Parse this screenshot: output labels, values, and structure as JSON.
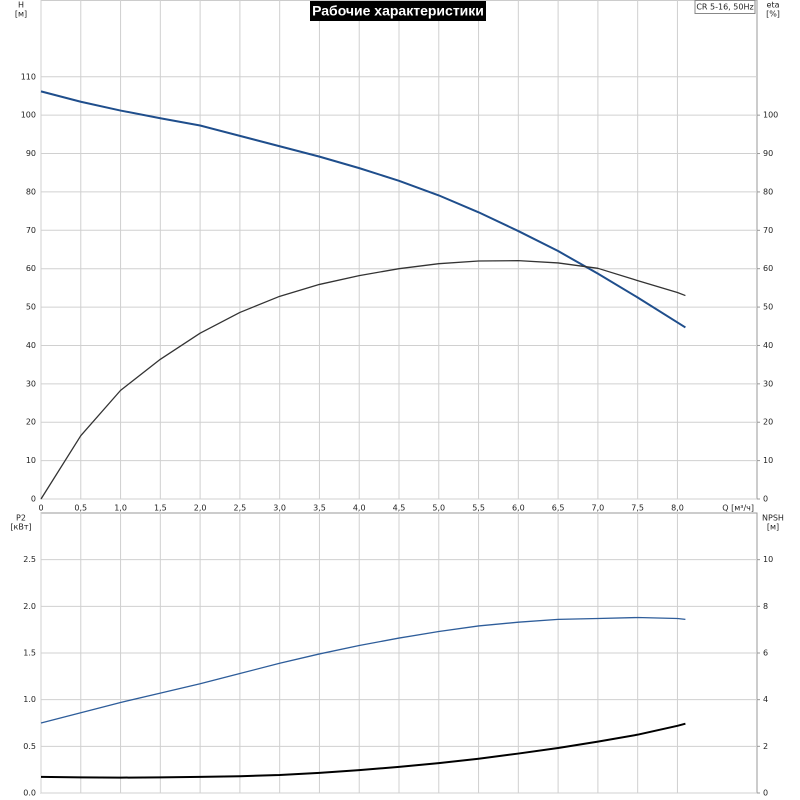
{
  "chart_data": [
    {
      "type": "line",
      "title": "Рабочие характеристики",
      "product": "CR 5-16, 50Hz",
      "ylabel": "H",
      "yunit": "[м]",
      "y2label": "eta",
      "y2unit": "[%]",
      "xlabel": "Q [м³/ч]",
      "x": [
        0,
        0.5,
        1.0,
        1.5,
        2.0,
        2.5,
        3.0,
        3.5,
        4.0,
        4.5,
        5.0,
        5.5,
        6.0,
        6.5,
        7.0,
        7.5,
        8.0,
        8.1
      ],
      "xlim": [
        0,
        9
      ],
      "xticks": [
        0,
        {
          "value": 0.5,
          "label": "0,5"
        },
        {
          "value": 1.0,
          "label": "1,0"
        },
        {
          "value": 1.5,
          "label": "1,5"
        },
        {
          "value": 2.0,
          "label": "2,0"
        },
        {
          "value": 2.5,
          "label": "2,5"
        },
        {
          "value": 3.0,
          "label": "3,0"
        },
        {
          "value": 3.5,
          "label": "3,5"
        },
        {
          "value": 4.0,
          "label": "4,0"
        },
        {
          "value": 4.5,
          "label": "4,5"
        },
        {
          "value": 5.0,
          "label": "5,0"
        },
        {
          "value": 5.5,
          "label": "5,5"
        },
        {
          "value": 6.0,
          "label": "6,0"
        },
        {
          "value": 6.5,
          "label": "6,5"
        },
        {
          "value": 7.0,
          "label": "7,0"
        },
        {
          "value": 7.5,
          "label": "7,5"
        },
        {
          "value": 8.0,
          "label": "8,0"
        }
      ],
      "ylim": [
        0,
        130
      ],
      "yticks": [
        0,
        10,
        20,
        30,
        40,
        50,
        60,
        70,
        80,
        90,
        100,
        110
      ],
      "y2lim": [
        0,
        130
      ],
      "y2ticks": [
        0,
        10,
        20,
        30,
        40,
        50,
        60,
        70,
        80,
        90,
        100
      ],
      "grid": true,
      "series": [
        {
          "color": "#1f4e8c",
          "width": 2,
          "values": [
            106.2,
            103.5,
            101.2,
            99.2,
            97.3,
            94.6,
            91.9,
            89.2,
            86.2,
            82.9,
            79.1,
            74.7,
            69.8,
            64.6,
            58.7,
            52.5,
            46.0,
            44.7
          ]
        },
        {
          "color": "#333333",
          "width": 1.3,
          "axis": "y2",
          "values": [
            0,
            16.5,
            28.3,
            36.4,
            43.2,
            48.6,
            52.8,
            55.9,
            58.2,
            60.0,
            61.3,
            62.0,
            62.1,
            61.5,
            60.1,
            56.9,
            53.8,
            53.0
          ]
        }
      ]
    },
    {
      "type": "line",
      "ylabel": "P2",
      "yunit": "[кВт]",
      "y2label": "NPSH",
      "y2unit": "[м]",
      "x": [
        0,
        0.5,
        1.0,
        1.5,
        2.0,
        2.5,
        3.0,
        3.5,
        4.0,
        4.5,
        5.0,
        5.5,
        6.0,
        6.5,
        7.0,
        7.5,
        8.0,
        8.1
      ],
      "xlim": [
        0,
        9
      ],
      "xgrid": [
        0,
        0.5,
        1.0,
        1.5,
        2.0,
        2.5,
        3.0,
        3.5,
        4.0,
        4.5,
        5.0,
        5.5,
        6.0,
        6.5,
        7.0,
        7.5,
        8.0
      ],
      "ylim": [
        0,
        3
      ],
      "yticks": [
        {
          "value": 0,
          "label": "0.0"
        },
        0.5,
        {
          "value": 1,
          "label": "1.0"
        },
        1.5,
        {
          "value": 2,
          "label": "2.0"
        },
        2.5
      ],
      "y2lim": [
        0,
        12
      ],
      "y2ticks": [
        0,
        2,
        4,
        6,
        8,
        10
      ],
      "grid": true,
      "series": [
        {
          "color": "#2e5d9a",
          "width": 1.3,
          "values": [
            0.75,
            0.86,
            0.97,
            1.07,
            1.17,
            1.28,
            1.39,
            1.49,
            1.58,
            1.66,
            1.73,
            1.79,
            1.83,
            1.86,
            1.87,
            1.88,
            1.87,
            1.86
          ]
        },
        {
          "color": "#000000",
          "width": 2,
          "axis": "y2",
          "values": [
            0.69,
            0.67,
            0.66,
            0.67,
            0.69,
            0.72,
            0.77,
            0.86,
            0.98,
            1.12,
            1.28,
            1.47,
            1.69,
            1.93,
            2.2,
            2.5,
            2.88,
            2.97
          ]
        }
      ]
    }
  ]
}
